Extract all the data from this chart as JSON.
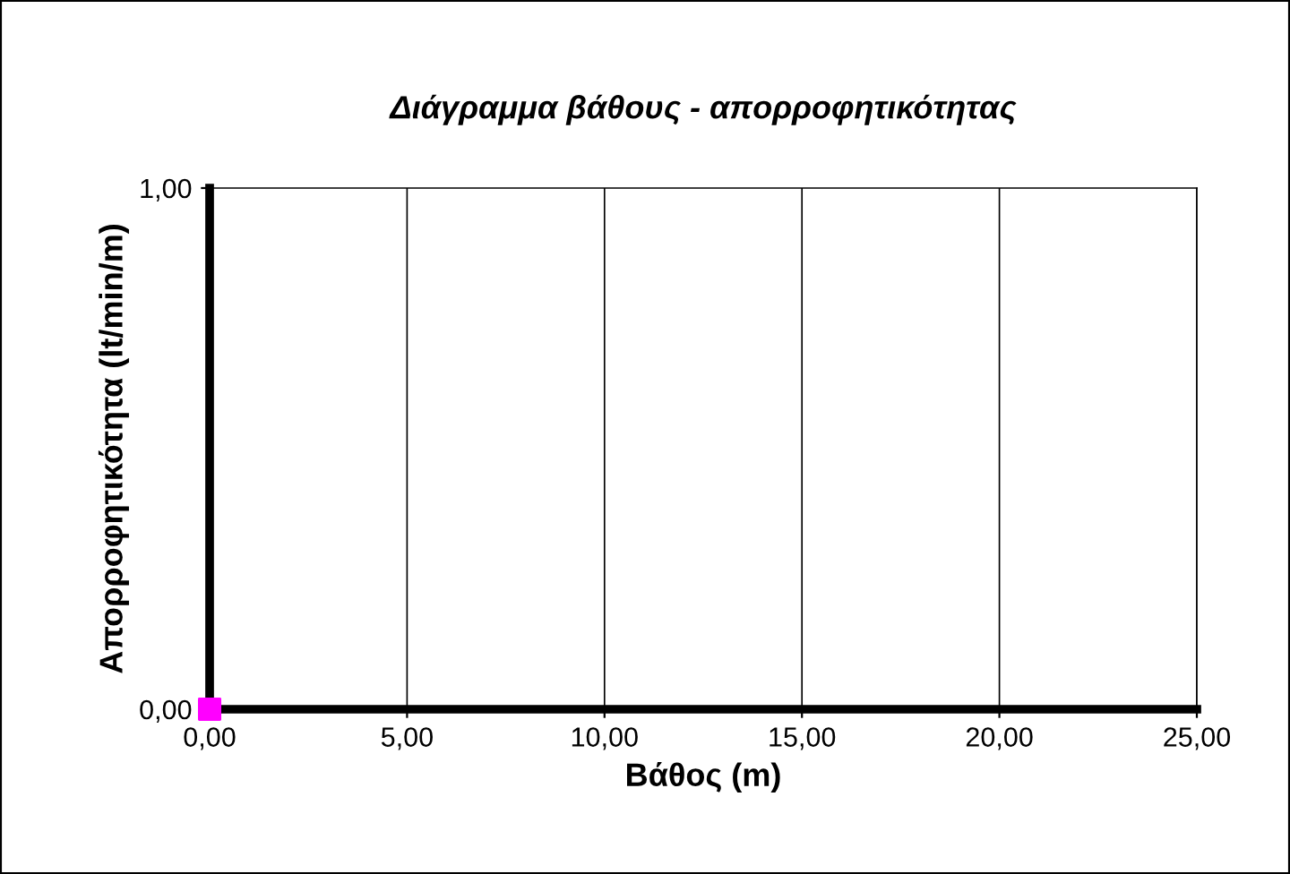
{
  "chart_data": {
    "type": "scatter",
    "title": "Διάγραμμα βάθους - απορροφητικότητας",
    "xlabel": "Βάθος (m)",
    "ylabel": "Απορροφητικότητα (lt/min/m)",
    "x": [
      0
    ],
    "series": [
      {
        "color": "#ff00ff",
        "values": [
          0
        ]
      }
    ],
    "marker": "square",
    "grid": "x",
    "xlim": [
      0,
      25
    ],
    "xticks": [
      {
        "value": 0,
        "label": "0,00"
      },
      {
        "value": 5,
        "label": "5,00"
      },
      {
        "value": 10,
        "label": "10,00"
      },
      {
        "value": 15,
        "label": "15,00"
      },
      {
        "value": 20,
        "label": "20,00"
      },
      {
        "value": 25,
        "label": "25,00"
      }
    ],
    "ylim": [
      0,
      1
    ],
    "yticks": [
      {
        "value": 0,
        "label": "0,00"
      },
      {
        "value": 1,
        "label": "1,00"
      }
    ]
  }
}
